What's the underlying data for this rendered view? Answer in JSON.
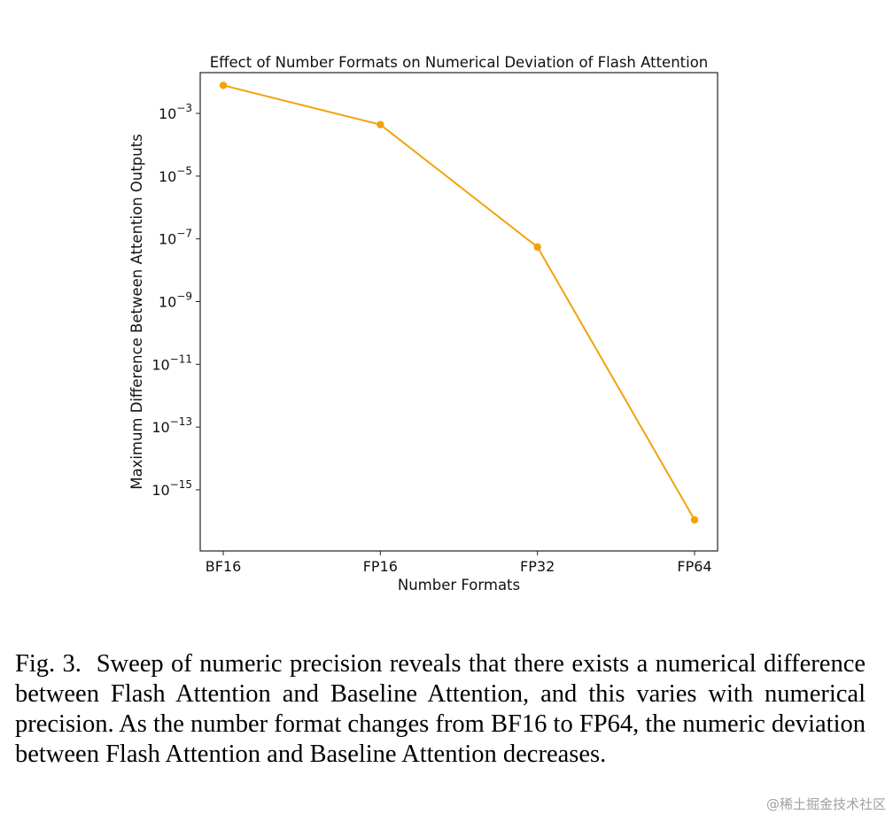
{
  "chart_data": {
    "type": "line",
    "title": "Effect of Number Formats on Numerical Deviation of Flash Attention",
    "xlabel": "Number Formats",
    "ylabel": "Maximum Difference Between Attention Outputs",
    "categories": [
      "BF16",
      "FP16",
      "FP32",
      "FP64"
    ],
    "series": [
      {
        "name": "Maximum Difference",
        "values": [
          0.0078,
          0.00044,
          5.5e-08,
          1.1e-16
        ],
        "color": "#f0a30a"
      }
    ],
    "yscale": "log",
    "ylim_log10": [
      -16.95,
      -1.7
    ],
    "yticks": [
      {
        "exp": -3,
        "base": "10",
        "sup": "−3"
      },
      {
        "exp": -5,
        "base": "10",
        "sup": "−5"
      },
      {
        "exp": -7,
        "base": "10",
        "sup": "−7"
      },
      {
        "exp": -9,
        "base": "10",
        "sup": "−9"
      },
      {
        "exp": -11,
        "base": "10",
        "sup": "−11"
      },
      {
        "exp": -13,
        "base": "10",
        "sup": "−13"
      },
      {
        "exp": -15,
        "base": "10",
        "sup": "−15"
      }
    ],
    "grid": false,
    "legend": "none"
  },
  "caption": {
    "label": "Fig. 3.",
    "text": "Sweep of numeric precision reveals that there exists a numerical difference between Flash Attention and Baseline Attention, and this varies with numerical precision. As the number format changes from BF16 to FP64, the numeric deviation between Flash Attention and Baseline Attention decreases."
  },
  "watermark": "@稀土掘金技术社区"
}
